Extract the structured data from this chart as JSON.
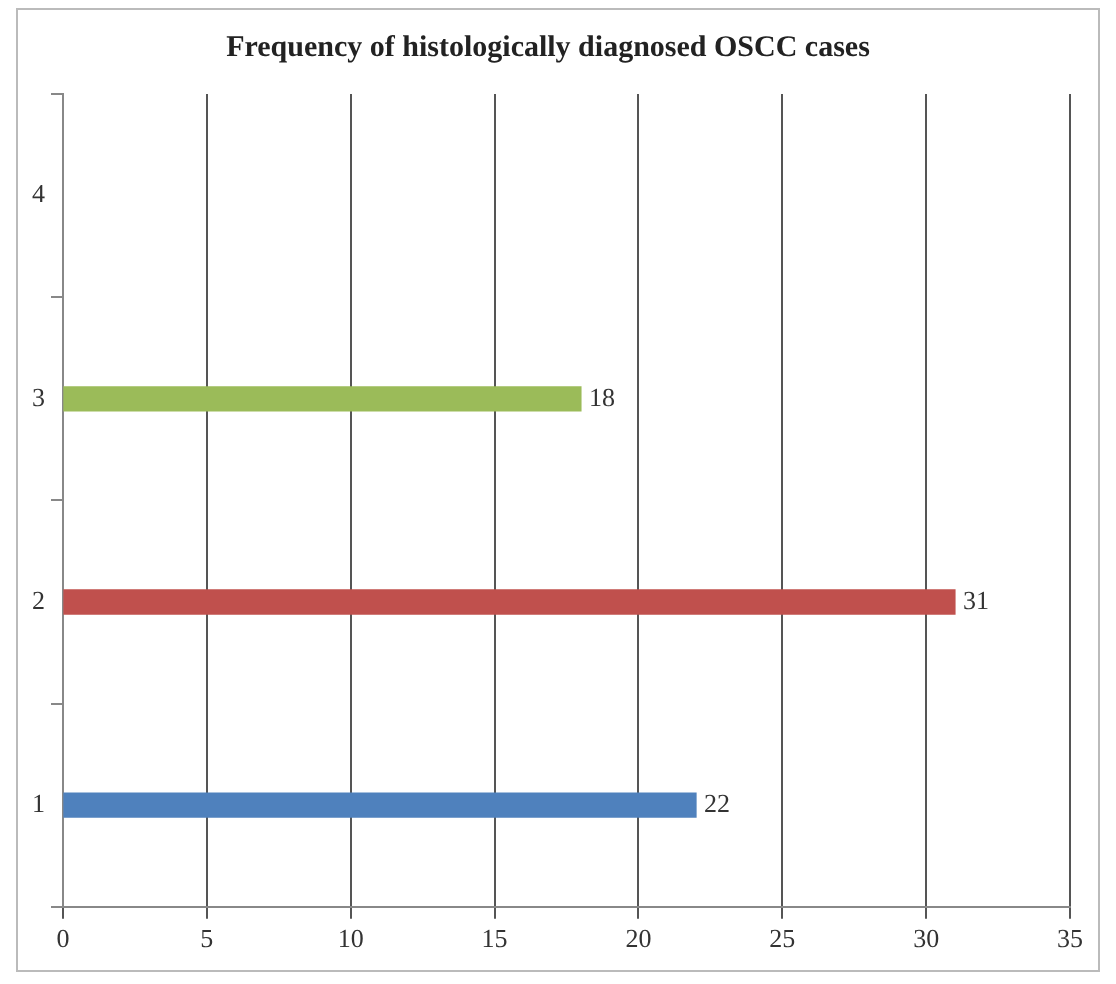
{
  "chart_data": {
    "type": "bar",
    "orientation": "horizontal",
    "title": "Frequency of histologically diagnosed OSCC cases",
    "categories": [
      "4",
      "3",
      "2",
      "1"
    ],
    "values": [
      null,
      18,
      31,
      22
    ],
    "colors": [
      "#4f81bd",
      "#9bbb59",
      "#c0504d",
      "#4f81bd"
    ],
    "xlim": [
      0,
      35
    ],
    "xticks": [
      0,
      5,
      10,
      15,
      20,
      25,
      30,
      35
    ],
    "grid": "x",
    "data_labels": true,
    "legend": false
  }
}
